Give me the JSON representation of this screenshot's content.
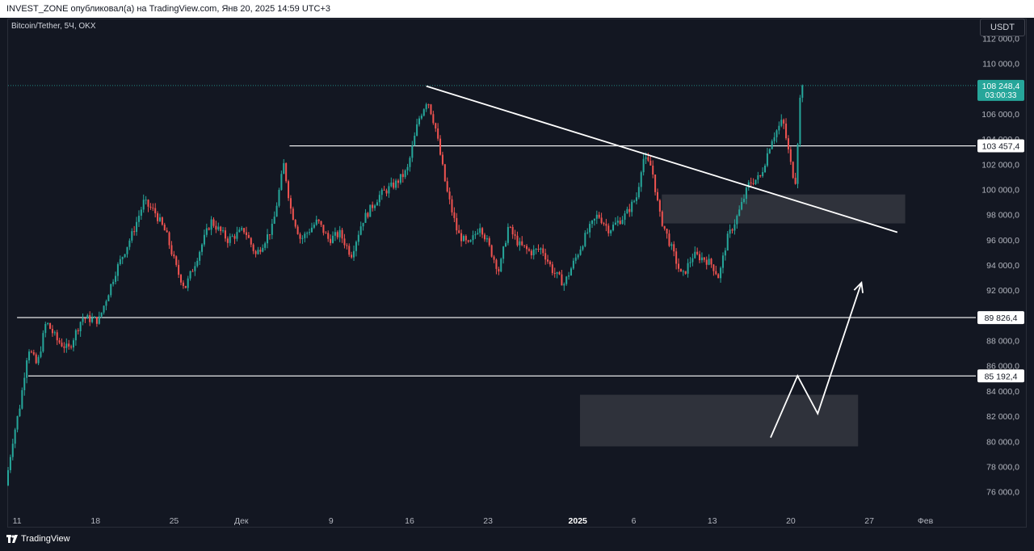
{
  "header": {
    "publish_info": "INVEST_ZONE опубликовал(а) на TradingView.com, Янв 20, 2025 14:59 UTC+3"
  },
  "symbol_label": "Bitcoin/Tether, 5Ч, OKX",
  "currency_button": "USDT",
  "footer": {
    "logo_text": "TradingView"
  },
  "chart_data": {
    "type": "candlestick",
    "ylim": [
      74500,
      113500
    ],
    "y_ticks": [
      {
        "value": 76000,
        "label": "76 000,0"
      },
      {
        "value": 78000,
        "label": "78 000,0"
      },
      {
        "value": 80000,
        "label": "80 000,0"
      },
      {
        "value": 82000,
        "label": "82 000,0"
      },
      {
        "value": 84000,
        "label": "84 000,0"
      },
      {
        "value": 86000,
        "label": "86 000,0"
      },
      {
        "value": 88000,
        "label": "88 000,0"
      },
      {
        "value": 92000,
        "label": "92 000,0"
      },
      {
        "value": 94000,
        "label": "94 000,0"
      },
      {
        "value": 96000,
        "label": "96 000,0"
      },
      {
        "value": 98000,
        "label": "98 000,0"
      },
      {
        "value": 100000,
        "label": "100 000,0"
      },
      {
        "value": 102000,
        "label": "102 000,0"
      },
      {
        "value": 104000,
        "label": "104 000,0"
      },
      {
        "value": 106000,
        "label": "106 000,0"
      },
      {
        "value": 110000,
        "label": "110 000,0"
      },
      {
        "value": 112000,
        "label": "112 000,0"
      }
    ],
    "x_ticks": [
      {
        "day": 11,
        "label": "11",
        "bold": false
      },
      {
        "day": 18,
        "label": "18",
        "bold": false
      },
      {
        "day": 25,
        "label": "25",
        "bold": false
      },
      {
        "day": 31,
        "label": "Дек",
        "bold": false
      },
      {
        "day": 39,
        "label": "9",
        "bold": false
      },
      {
        "day": 46,
        "label": "16",
        "bold": false
      },
      {
        "day": 53,
        "label": "23",
        "bold": false
      },
      {
        "day": 61,
        "label": "2025",
        "bold": true
      },
      {
        "day": 66,
        "label": "6",
        "bold": false
      },
      {
        "day": 73,
        "label": "13",
        "bold": false
      },
      {
        "day": 80,
        "label": "20",
        "bold": false
      },
      {
        "day": 87,
        "label": "27",
        "bold": false
      },
      {
        "day": 92,
        "label": "Фев",
        "bold": false
      }
    ],
    "x_range_days": [
      10.2,
      96.5
    ],
    "current_price": {
      "value": 108248.4,
      "label": "108 248,4",
      "timer": "03:00:33",
      "color": "#26a69a"
    },
    "horizontal_levels": [
      {
        "value": 103457.4,
        "label": "103 457,4",
        "from_day": 35.3
      },
      {
        "value": 89826.4,
        "label": "89 826,4",
        "from_day": 11.0
      },
      {
        "value": 85192.4,
        "label": "85 192,4",
        "from_day": 12.0
      }
    ],
    "trendline": {
      "from": [
        47.5,
        108200
      ],
      "to": [
        89.5,
        96600
      ]
    },
    "zones": [
      {
        "day_from": 68.5,
        "day_to": 90.2,
        "low": 97300,
        "high": 99600
      },
      {
        "day_from": 61.2,
        "day_to": 86.0,
        "low": 79600,
        "high": 83700
      }
    ],
    "projection_path": [
      [
        78.2,
        80300
      ],
      [
        80.6,
        85200
      ],
      [
        82.4,
        82200
      ],
      [
        86.3,
        92600
      ]
    ],
    "price_path": [
      [
        10.2,
        76500
      ],
      [
        10.8,
        80000
      ],
      [
        11.5,
        83000
      ],
      [
        12.2,
        87500
      ],
      [
        13.0,
        86000
      ],
      [
        13.8,
        89500
      ],
      [
        14.8,
        88000
      ],
      [
        15.8,
        87300
      ],
      [
        17.0,
        89800
      ],
      [
        18.5,
        89600
      ],
      [
        20.0,
        93500
      ],
      [
        21.5,
        96500
      ],
      [
        22.5,
        99000
      ],
      [
        23.5,
        98200
      ],
      [
        24.5,
        96500
      ],
      [
        25.5,
        93500
      ],
      [
        26.2,
        92200
      ],
      [
        27.0,
        94000
      ],
      [
        28.5,
        97500
      ],
      [
        30.0,
        96000
      ],
      [
        31.5,
        96800
      ],
      [
        32.5,
        94800
      ],
      [
        34.0,
        97000
      ],
      [
        35.0,
        102000
      ],
      [
        35.6,
        98500
      ],
      [
        36.5,
        96000
      ],
      [
        38.0,
        97500
      ],
      [
        39.0,
        96000
      ],
      [
        40.0,
        96500
      ],
      [
        41.0,
        94800
      ],
      [
        42.0,
        97500
      ],
      [
        43.5,
        99500
      ],
      [
        45.0,
        100500
      ],
      [
        46.0,
        101500
      ],
      [
        47.0,
        105500
      ],
      [
        47.8,
        107200
      ],
      [
        48.5,
        105000
      ],
      [
        49.5,
        100000
      ],
      [
        50.5,
        96500
      ],
      [
        51.5,
        95500
      ],
      [
        52.5,
        97200
      ],
      [
        53.5,
        95000
      ],
      [
        54.2,
        93500
      ],
      [
        55.0,
        97000
      ],
      [
        56.0,
        95600
      ],
      [
        57.0,
        95000
      ],
      [
        58.0,
        95300
      ],
      [
        59.0,
        93500
      ],
      [
        60.0,
        92500
      ],
      [
        61.0,
        94500
      ],
      [
        62.0,
        96500
      ],
      [
        63.0,
        98000
      ],
      [
        64.0,
        96800
      ],
      [
        65.5,
        98000
      ],
      [
        66.5,
        99500
      ],
      [
        67.0,
        102500
      ],
      [
        67.8,
        101800
      ],
      [
        68.5,
        98000
      ],
      [
        69.5,
        95500
      ],
      [
        70.5,
        93000
      ],
      [
        71.5,
        94800
      ],
      [
        72.5,
        94500
      ],
      [
        73.2,
        94000
      ],
      [
        73.8,
        93000
      ],
      [
        74.5,
        96000
      ],
      [
        75.5,
        98000
      ],
      [
        76.5,
        100500
      ],
      [
        77.5,
        101000
      ],
      [
        78.5,
        104000
      ],
      [
        79.5,
        105500
      ],
      [
        80.2,
        102000
      ],
      [
        80.6,
        100500
      ],
      [
        80.9,
        105000
      ],
      [
        81.1,
        108248.4
      ]
    ]
  }
}
